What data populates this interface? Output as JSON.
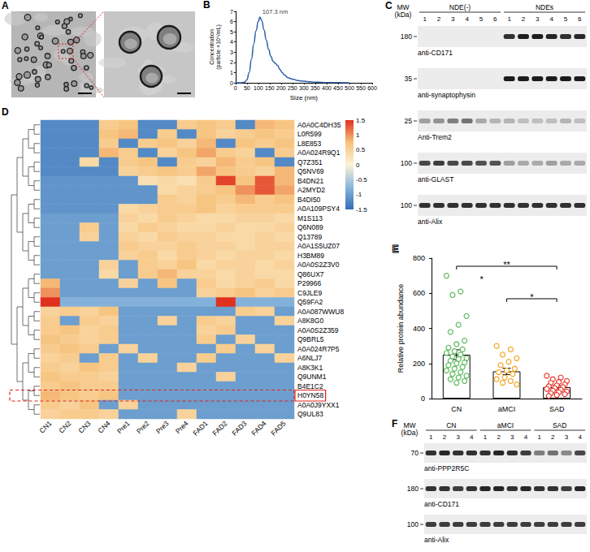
{
  "panel_A": {
    "panel": "A"
  },
  "chart_data": [
    {
      "panel": "B",
      "type": "line",
      "x": [
        0,
        20,
        40,
        50,
        60,
        70,
        80,
        90,
        100,
        107.3,
        115,
        125,
        135,
        145,
        155,
        165,
        175,
        185,
        195,
        205,
        215,
        230,
        250,
        275,
        300,
        330,
        360,
        400,
        450,
        500
      ],
      "values": [
        0,
        0,
        0.05,
        0.3,
        1.0,
        2.3,
        3.8,
        5.1,
        6.0,
        6.45,
        6.1,
        5.2,
        4.2,
        3.3,
        2.6,
        2.1,
        1.9,
        1.7,
        1.3,
        1.0,
        0.75,
        0.5,
        0.35,
        0.22,
        0.15,
        0.09,
        0.05,
        0.02,
        0.01,
        0
      ],
      "color": "#2b5ca8",
      "xlabel": "Size (nm)",
      "ylabel": "Concentration (particle ×10⁶/mL)",
      "xlim": [
        0,
        600
      ],
      "xticks": [
        0,
        50,
        100,
        150,
        200,
        250,
        300,
        350,
        400,
        450,
        500,
        550,
        600
      ],
      "ylim": [
        0,
        7
      ],
      "yticks": [
        0,
        1,
        2,
        3,
        4,
        5,
        6,
        7
      ],
      "grid": false,
      "annotations": [
        {
          "x": 107.3,
          "y": 6.45,
          "text": "107.3 nm"
        }
      ]
    },
    {
      "panel": "D",
      "type": "heatmap",
      "columns": [
        "CN1",
        "CN2",
        "CN3",
        "CN4",
        "Pre1",
        "Pre2",
        "Pre3",
        "Pre4",
        "FAD1",
        "FAD2",
        "FAD3",
        "FAD4",
        "FAD5"
      ],
      "rows": [
        "A0A0C4DH35",
        "L0R599",
        "L8E853",
        "A0A024R9Q1",
        "Q7Z351",
        "Q5NV69",
        "B4DN21",
        "A2MYD2",
        "B4DI50",
        "A0A109PSY4",
        "M1S113",
        "Q6N089",
        "Q13789",
        "A0A1S5UZ07",
        "H3BM89",
        "A0A0S2Z3V0",
        "Q86UX7",
        "P29966",
        "C9JLE9",
        "Q59FA2",
        "A0A087WWU8",
        "A8K8G0",
        "A0A0S2Z359",
        "Q9BRL5",
        "A0A024R7P5",
        "A6NLJ7",
        "A8K3K1",
        "Q9UNM1",
        "B4E1C2",
        "H0YN58",
        "A0A0J9YXX1",
        "Q9UL83"
      ],
      "values": [
        [
          -1.2,
          -1.2,
          -1.2,
          0.6,
          0.7,
          -1.2,
          -1.2,
          0.6,
          0.7,
          0.6,
          -1.2,
          0.8,
          0.7
        ],
        [
          -1.2,
          -1.2,
          -1.2,
          0.7,
          0.8,
          -1.2,
          0.6,
          -1.2,
          0.7,
          0.5,
          0.6,
          0.7,
          0.6
        ],
        [
          -1.2,
          -1.2,
          -1.2,
          0.6,
          -1.2,
          0.6,
          0.7,
          0.5,
          0.8,
          -1.2,
          0.7,
          0.6,
          0.7
        ],
        [
          -1.2,
          -1.2,
          -1.2,
          0.8,
          0.6,
          -1.2,
          0.5,
          0.7,
          0.9,
          0.6,
          0.5,
          -1.2,
          0.6
        ],
        [
          -1.2,
          -1.2,
          0.4,
          -1.2,
          0.6,
          0.7,
          -1.2,
          0.6,
          0.5,
          0.8,
          0.6,
          0.7,
          -1.2
        ],
        [
          -1.2,
          -1.2,
          -1.2,
          -1.2,
          0.5,
          0.6,
          0.7,
          0.6,
          0.9,
          0.7,
          0.6,
          0.5,
          0.8
        ],
        [
          -1.1,
          -1.1,
          -1.1,
          -1.1,
          -1.1,
          0.3,
          0.4,
          0.3,
          0.6,
          1.4,
          0.7,
          1.3,
          0.8
        ],
        [
          -1.1,
          -1.1,
          -1.1,
          -1.1,
          -1.1,
          -1.1,
          0.4,
          0.5,
          0.6,
          0.7,
          1.0,
          1.3,
          0.9
        ],
        [
          -1.1,
          -1.1,
          -1.1,
          -1.1,
          -1.1,
          -1.1,
          0.6,
          0.5,
          0.7,
          0.6,
          0.8,
          0.6,
          0.7
        ],
        [
          -1.1,
          -1.1,
          -1.1,
          -1.1,
          0.4,
          0.5,
          0.6,
          0.6,
          0.7,
          0.5,
          0.6,
          0.6,
          0.6
        ],
        [
          -1.0,
          -1.0,
          -1.0,
          -1.0,
          0.5,
          0.4,
          0.6,
          0.5,
          0.4,
          0.4,
          0.5,
          0.5,
          0.4
        ],
        [
          -1.0,
          -1.0,
          0.6,
          -1.0,
          0.4,
          0.6,
          0.5,
          0.4,
          0.4,
          0.5,
          0.4,
          0.4,
          0.5
        ],
        [
          -1.0,
          -1.0,
          0.5,
          -1.0,
          0.5,
          0.4,
          0.6,
          0.5,
          0.5,
          0.4,
          0.4,
          0.5,
          0.4
        ],
        [
          -1.0,
          -1.0,
          -1.0,
          -1.0,
          0.6,
          0.5,
          0.5,
          0.6,
          0.5,
          0.5,
          0.4,
          0.5,
          0.5
        ],
        [
          -1.0,
          -1.0,
          -1.0,
          -1.0,
          0.5,
          0.6,
          0.4,
          0.6,
          0.5,
          0.4,
          0.5,
          0.5,
          0.4
        ],
        [
          -1.0,
          -1.0,
          -1.0,
          0.5,
          -1.0,
          0.6,
          0.5,
          0.7,
          0.4,
          0.5,
          0.5,
          0.4,
          0.5
        ],
        [
          -1.0,
          -1.0,
          -1.0,
          0.4,
          -1.0,
          0.6,
          0.8,
          0.5,
          0.5,
          0.4,
          0.5,
          0.4,
          0.4
        ],
        [
          0.8,
          -1.0,
          -1.0,
          -1.0,
          0.5,
          -1.0,
          0.7,
          -1.0,
          0.6,
          0.4,
          0.5,
          0.6,
          0.4
        ],
        [
          1.0,
          -1.0,
          -1.0,
          -1.0,
          -1.0,
          -1.0,
          -1.0,
          -1.0,
          0.5,
          0.6,
          0.7,
          0.5,
          0.6
        ],
        [
          1.5,
          -0.8,
          -0.8,
          -0.8,
          -0.8,
          -0.8,
          -0.8,
          -0.8,
          -0.8,
          1.5,
          -0.8,
          -0.8,
          -0.8
        ],
        [
          0.5,
          0.6,
          0.5,
          0.7,
          -1.0,
          -1.0,
          -1.0,
          -1.0,
          -1.0,
          -1.0,
          0.6,
          0.5,
          -1.0
        ],
        [
          0.6,
          -1.0,
          0.6,
          0.5,
          -1.0,
          -1.0,
          0.5,
          -1.0,
          0.6,
          0.5,
          -1.0,
          -1.0,
          0.5
        ],
        [
          0.6,
          0.7,
          0.5,
          0.6,
          -1.0,
          -1.0,
          -1.0,
          -1.0,
          0.5,
          0.6,
          -1.0,
          -1.0,
          -1.0
        ],
        [
          0.7,
          0.6,
          0.5,
          0.6,
          -1.0,
          -1.0,
          -1.0,
          -1.0,
          0.6,
          -1.0,
          0.5,
          -1.0,
          -1.0
        ],
        [
          0.6,
          0.7,
          0.6,
          -1.0,
          0.5,
          -1.0,
          -1.0,
          -1.0,
          -1.0,
          0.6,
          -1.0,
          0.5,
          -1.0
        ],
        [
          0.5,
          0.6,
          -1.0,
          0.6,
          -1.0,
          0.5,
          -1.0,
          -1.0,
          0.6,
          -1.0,
          -1.0,
          -1.0,
          0.5
        ],
        [
          0.6,
          0.5,
          0.7,
          0.6,
          -1.0,
          -1.0,
          -1.0,
          0.5,
          -1.0,
          -1.0,
          -1.0,
          -1.0,
          -1.0
        ],
        [
          0.7,
          0.6,
          0.6,
          0.5,
          -1.0,
          -1.0,
          -1.0,
          -1.0,
          -1.0,
          0.5,
          -1.0,
          -1.0,
          -1.0
        ],
        [
          0.6,
          0.7,
          0.6,
          0.6,
          -1.0,
          -1.0,
          -1.0,
          -1.0,
          -1.0,
          -1.0,
          -1.0,
          -1.0,
          -1.0
        ],
        [
          0.8,
          0.7,
          0.6,
          0.7,
          -1.0,
          -1.0,
          -1.0,
          -1.0,
          -1.0,
          -1.0,
          -1.0,
          -1.0,
          -1.0
        ],
        [
          0.6,
          0.5,
          0.7,
          -1.0,
          0.5,
          -1.0,
          -1.0,
          -1.0,
          -1.0,
          -1.0,
          -1.0,
          -1.0,
          -1.0
        ],
        [
          0.5,
          0.6,
          0.6,
          0.5,
          -1.0,
          -1.0,
          -1.0,
          0.5,
          -1.0,
          -1.0,
          -1.0,
          -1.0,
          -1.0
        ]
      ],
      "colorbar": {
        "range": [
          -1.5,
          1.5
        ],
        "ticks": [
          -1.5,
          -1,
          -0.5,
          0,
          0.5,
          1,
          1.5
        ],
        "colors": [
          "#2f6db5",
          "#8ab6dc",
          "#fbf3d6",
          "#f7c27c",
          "#e0301e"
        ]
      },
      "annotations": [
        {
          "row": "H0YN58",
          "line_style": "dashed",
          "color": "#e0201b"
        }
      ]
    },
    {
      "panel": "E",
      "type": "bar",
      "categories": [
        "CN",
        "aMCI",
        "SAD"
      ],
      "values": [
        250,
        155,
        65
      ],
      "errors": [
        28,
        18,
        8
      ],
      "points": [
        [
          700,
          610,
          590,
          470,
          420,
          380,
          330,
          310,
          290,
          280,
          270,
          260,
          250,
          240,
          230,
          225,
          215,
          205,
          200,
          190,
          180,
          170,
          160,
          150,
          140,
          130,
          120,
          110,
          100,
          90
        ],
        [
          300,
          280,
          250,
          230,
          210,
          190,
          170,
          160,
          150,
          140,
          120,
          110,
          100,
          90,
          80
        ],
        [
          130,
          120,
          110,
          100,
          95,
          90,
          80,
          75,
          70,
          65,
          60,
          55,
          50,
          45,
          40,
          35,
          30,
          25,
          20,
          15
        ]
      ],
      "color": "#ffffff",
      "colors": [
        "#5cb85c",
        "#f5a623",
        "#e8392e"
      ],
      "ylabel": "Relative protein abundance",
      "ylim": [
        0,
        800
      ],
      "yticks": [
        0,
        200,
        400,
        600,
        800
      ],
      "grid": false,
      "annotations": [
        {
          "from": "CN",
          "to": "aMCI",
          "text": "*"
        },
        {
          "from": "CN",
          "to": "SAD",
          "text": "**"
        },
        {
          "from": "aMCI",
          "to": "SAD",
          "text": "*"
        }
      ]
    }
  ],
  "panel_C": {
    "panel": "C",
    "mw_title": "MW (kDa)",
    "groups": [
      {
        "name": "NDE(-)",
        "lanes": [
          "1",
          "2",
          "3",
          "4",
          "5",
          "6"
        ]
      },
      {
        "name": "NDEs",
        "lanes": [
          "1",
          "2",
          "3",
          "4",
          "5",
          "6"
        ]
      }
    ],
    "rows": [
      {
        "mw": "180",
        "antibody": "anti-CD171",
        "signal": [
          0,
          0,
          0,
          0,
          0,
          0,
          0.85,
          0.95,
          0.95,
          0.9,
          0.85,
          0.9
        ]
      },
      {
        "mw": "35",
        "antibody": "anti-synaptophysin",
        "signal": [
          0,
          0,
          0,
          0,
          0,
          0,
          0.95,
          0.95,
          0.95,
          0.95,
          0.95,
          0.95
        ]
      },
      {
        "mw": "25",
        "antibody": "Anti-Trem2",
        "signal": [
          0.35,
          0.4,
          0.5,
          0.55,
          0.3,
          0.25,
          0.25,
          0.2,
          0.2,
          0.2,
          0.25,
          0.2
        ]
      },
      {
        "mw": "100",
        "antibody": "anti-GLAST",
        "signal": [
          0.75,
          0.8,
          0.75,
          0.75,
          0.7,
          0.7,
          0.35,
          0.3,
          0.3,
          0.35,
          0.3,
          0.3
        ]
      },
      {
        "mw": "100",
        "antibody": "anti-Alix",
        "signal": [
          0.85,
          0.85,
          0.85,
          0.85,
          0.85,
          0.85,
          0.85,
          0.85,
          0.85,
          0.85,
          0.85,
          0.85
        ]
      }
    ]
  },
  "panel_F": {
    "panel": "F",
    "mw_title": "MW (kDa)",
    "groups": [
      {
        "name": "CN",
        "lanes": [
          "1",
          "2",
          "3",
          "4"
        ]
      },
      {
        "name": "aMCI",
        "lanes": [
          "1",
          "2",
          "3",
          "4"
        ]
      },
      {
        "name": "SAD",
        "lanes": [
          "1",
          "2",
          "3",
          "4"
        ]
      }
    ],
    "rows": [
      {
        "mw": "70",
        "antibody": "anti-PPP2R5C",
        "signal": [
          0.85,
          0.9,
          0.85,
          0.85,
          0.85,
          0.9,
          0.85,
          0.8,
          0.5,
          0.55,
          0.45,
          0.75
        ]
      },
      {
        "mw": "180",
        "antibody": "anti-CD171",
        "signal": [
          0.85,
          0.85,
          0.8,
          0.85,
          0.9,
          0.9,
          0.85,
          0.9,
          0.85,
          0.85,
          0.8,
          0.9
        ]
      },
      {
        "mw": "100",
        "antibody": "anti-Alix",
        "signal": [
          0.8,
          0.8,
          0.8,
          0.8,
          0.8,
          0.8,
          0.8,
          0.8,
          0.8,
          0.8,
          0.8,
          0.8
        ]
      }
    ]
  }
}
